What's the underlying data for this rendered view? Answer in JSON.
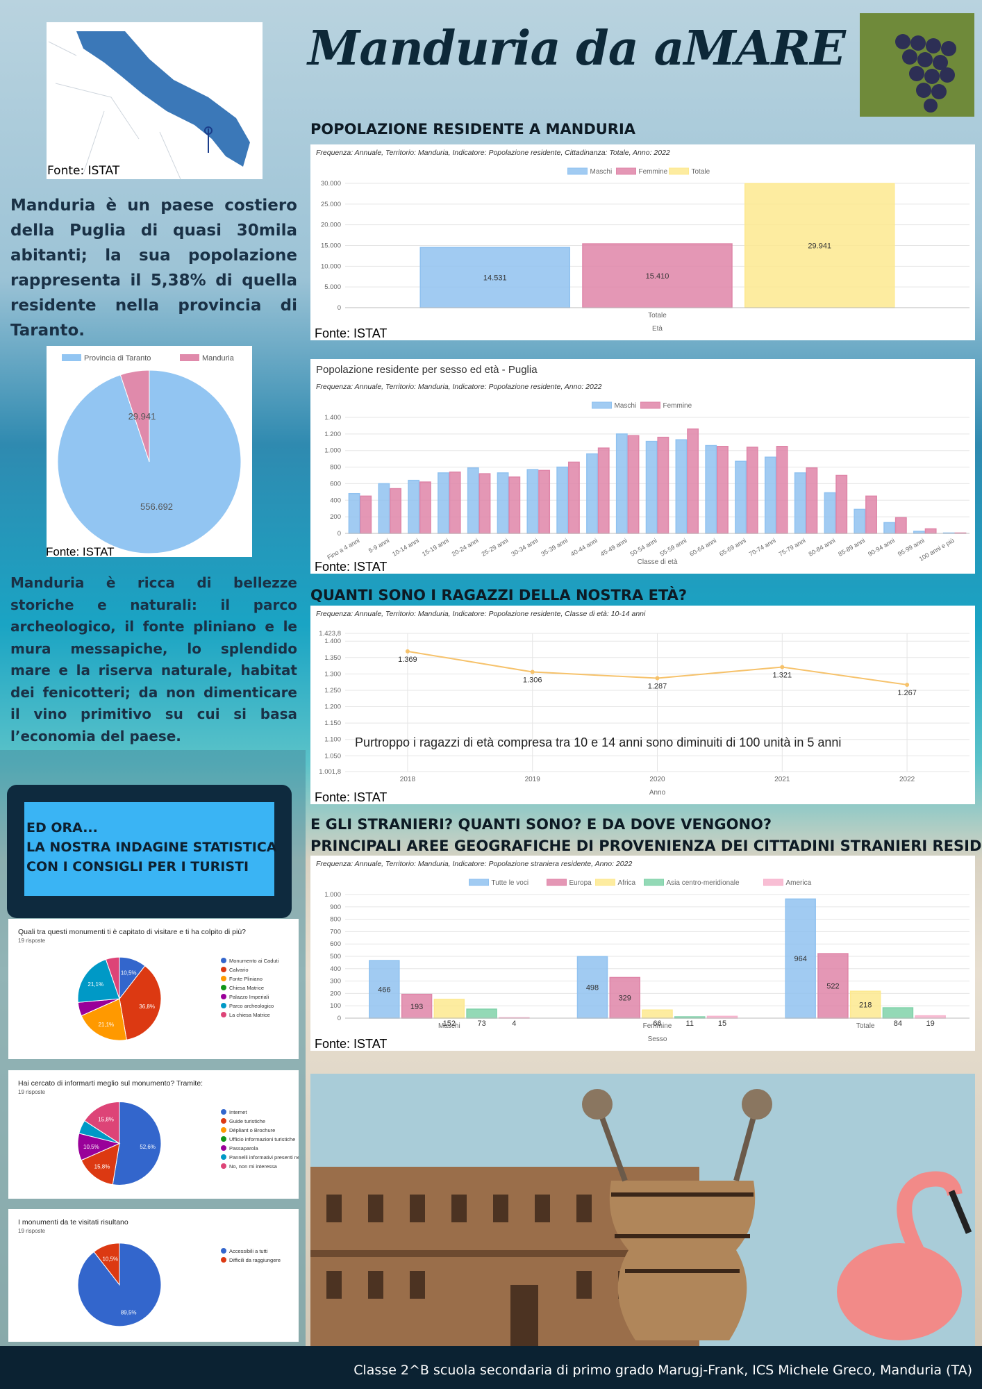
{
  "title": "Manduria da aMARE",
  "map_source": "Fonte: ISTAT",
  "intro": "Manduria è un paese costiero della Puglia di quasi 30mila abitanti; la sua popolazione rappresenta il 5,38% di quella residente nella provincia di Taranto.",
  "description": "Manduria è ricca di bellezze storiche e naturali: il parco archeologico, il fonte pliniano e le mura messapiche, lo splendido mare e la riserva naturale, habitat dei fenicotteri; da non dimenticare il vino primitivo su cui si basa l’economia del paese.",
  "callout": [
    "ED ORA...",
    "LA NOSTRA INDAGINE STATISTICA",
    "CON I CONSIGLI PER I TURISTI"
  ],
  "footer": "Classe 2^B scuola secondaria di primo grado Marugj-Frank, ICS Michele Greco, Manduria (TA)",
  "chart_data": [
    {
      "type": "pie",
      "categories": [
        "Provincia di Taranto",
        "Manduria"
      ],
      "values": [
        556692,
        29941
      ],
      "value_labels": [
        "556.692",
        "29.941"
      ],
      "colors": [
        "#92c5f2",
        "#e08aab"
      ],
      "legend": "top",
      "source": "Fonte: ISTAT"
    },
    {
      "type": "bar",
      "heading": "POPOLAZIONE RESIDENTE A MANDURIA",
      "subtitle": "Frequenza: Annuale, Territorio: Manduria, Indicatore: Popolazione residente, Cittadinanza: Totale, Anno: 2022",
      "categories": [
        "Totale"
      ],
      "series": [
        {
          "name": "Maschi",
          "color": "#90c2f0",
          "values": [
            14531
          ],
          "value_labels": [
            "14.531"
          ]
        },
        {
          "name": "Femmine",
          "color": "#df85a8",
          "values": [
            15410
          ],
          "value_labels": [
            "15.410"
          ]
        },
        {
          "name": "Totale",
          "color": "#fde98f",
          "values": [
            29941
          ],
          "value_labels": [
            "29.941"
          ]
        }
      ],
      "xlabel": "Età",
      "ylim": [
        0,
        30000
      ],
      "yticks": [
        0,
        {
          "value": 5000,
          "label": "5.000"
        },
        {
          "value": 10000,
          "label": "10.000"
        },
        {
          "value": 15000,
          "label": "15.000"
        },
        {
          "value": 20000,
          "label": "20.000"
        },
        {
          "value": 25000,
          "label": "25.000"
        },
        {
          "value": 30000,
          "label": "30.000"
        }
      ],
      "grid": true,
      "legend": "top",
      "source": "Fonte: ISTAT"
    },
    {
      "type": "bar",
      "title": "Popolazione residente per sesso ed età - Puglia",
      "subtitle": "Frequenza: Annuale, Territorio: Manduria, Indicatore: Popolazione residente, Anno: 2022",
      "categories": [
        "Fino a 4 anni",
        "5-9 anni",
        "10-14 anni",
        "15-19 anni",
        "20-24 anni",
        "25-29 anni",
        "30-34 anni",
        "35-39 anni",
        "40-44 anni",
        "45-49 anni",
        "50-54 anni",
        "55-59 anni",
        "60-64 anni",
        "65-69 anni",
        "70-74 anni",
        "75-79 anni",
        "80-84 anni",
        "85-89 anni",
        "90-94 anni",
        "95-99 anni",
        "100 anni e più"
      ],
      "series": [
        {
          "name": "Maschi",
          "color": "#90c2f0",
          "values": [
            480,
            600,
            640,
            730,
            790,
            730,
            770,
            800,
            960,
            1200,
            1110,
            1130,
            1060,
            870,
            920,
            730,
            490,
            290,
            130,
            25,
            5
          ]
        },
        {
          "name": "Femmine",
          "color": "#df85a8",
          "values": [
            450,
            540,
            620,
            740,
            720,
            680,
            760,
            860,
            1030,
            1180,
            1160,
            1260,
            1050,
            1040,
            1050,
            790,
            700,
            450,
            190,
            55,
            5
          ]
        }
      ],
      "xlabel": "Classe di età",
      "ylim": [
        0,
        1400
      ],
      "yticks": [
        0,
        200,
        400,
        600,
        800,
        {
          "value": 1000,
          "label": "1.000"
        },
        {
          "value": 1200,
          "label": "1.200"
        },
        {
          "value": 1400,
          "label": "1.400"
        }
      ],
      "grid": true,
      "legend": "top",
      "source": "Fonte: ISTAT"
    },
    {
      "type": "line",
      "heading": "QUANTI SONO I RAGAZZI DELLA NOSTRA ETÀ?",
      "subtitle": "Frequenza: Annuale, Territorio: Manduria, Indicatore: Popolazione residente, Classe di età: 10-14 anni",
      "x": [
        2018,
        2019,
        2020,
        2021,
        2022
      ],
      "values": [
        1369,
        1306,
        1287,
        1321,
        1267
      ],
      "value_labels": [
        "1.369",
        "1.306",
        "1.287",
        "1.321",
        "1.267"
      ],
      "color": "#f6c26b",
      "xlabel": "Anno",
      "xlim": [
        2017.5,
        2022.5
      ],
      "xticks": [
        2018,
        2019,
        2020,
        2021,
        2022
      ],
      "ylim": [
        1001.8,
        1423.8
      ],
      "yticks": [
        {
          "value": 1001.8,
          "label": "1.001,8"
        },
        {
          "value": 1050,
          "label": "1.050"
        },
        {
          "value": 1100,
          "label": "1.100"
        },
        {
          "value": 1150,
          "label": "1.150"
        },
        {
          "value": 1200,
          "label": "1.200"
        },
        {
          "value": 1250,
          "label": "1.250"
        },
        {
          "value": 1300,
          "label": "1.300"
        },
        {
          "value": 1350,
          "label": "1.350"
        },
        {
          "value": 1400,
          "label": "1.400"
        },
        {
          "value": 1423.8,
          "label": "1.423,8"
        }
      ],
      "grid": true,
      "annotation": "Purtroppo i ragazzi di età compresa tra 10 e 14 anni sono diminuiti di 100 unità in 5 anni",
      "source": "Fonte: ISTAT"
    },
    {
      "type": "bar",
      "heading": "E GLI STRANIERI? QUANTI SONO? E DA DOVE VENGONO?",
      "subheading": "PRINCIPALI AREE GEOGRAFICHE DI PROVENIENZA DEI CITTADINI STRANIERI RESIDENTI",
      "subtitle": "Frequenza: Annuale, Territorio: Manduria, Indicatore: Popolazione straniera residente, Anno: 2022",
      "categories": [
        "Maschi",
        "Femmine",
        "Totale"
      ],
      "series": [
        {
          "name": "Tutte le voci",
          "color": "#90c2f0",
          "values": [
            466,
            498,
            964
          ]
        },
        {
          "name": "Europa",
          "color": "#df85a8",
          "values": [
            193,
            329,
            522
          ]
        },
        {
          "name": "Africa",
          "color": "#fde98f",
          "values": [
            152,
            66,
            218
          ]
        },
        {
          "name": "Asia centro-meridionale",
          "color": "#80d2a9",
          "values": [
            73,
            11,
            84
          ]
        },
        {
          "name": "America",
          "color": "#f7b3cd",
          "values": [
            4,
            15,
            19
          ]
        }
      ],
      "data_labels": true,
      "xlabel": "Sesso",
      "ylim": [
        0,
        1000
      ],
      "yticks": [
        0,
        100,
        200,
        300,
        400,
        500,
        600,
        700,
        800,
        900,
        {
          "value": 1000,
          "label": "1.000"
        }
      ],
      "grid": true,
      "legend": "top",
      "source": "Fonte: ISTAT"
    },
    {
      "type": "pie",
      "title": "Quali tra questi monumenti ti è capitato di visitare e ti ha colpito di più?",
      "subtitle": "19 risposte",
      "categories": [
        "Monumento ai Caduti",
        "Calvario",
        "Fonte Pliniano",
        "Chiesa Matrice",
        "Palazzo Imperiali",
        "Parco archeologico",
        "La chiesa Matrice"
      ],
      "values": [
        10.5,
        36.8,
        21.1,
        0,
        5.3,
        21.1,
        5.3
      ],
      "value_labels": [
        "10,5%",
        "36,8%",
        "21,1%",
        null,
        null,
        "21,1%",
        null
      ],
      "colors": [
        "#3366cc",
        "#dc3912",
        "#ff9900",
        "#109618",
        "#990099",
        "#0099c6",
        "#dd4477"
      ],
      "legend": "right"
    },
    {
      "type": "pie",
      "title": "Hai cercato di informarti meglio sul monumento? Tramite:",
      "subtitle": "19 risposte",
      "categories": [
        "Internet",
        "Guide turistiche",
        "Dépliant o Brochure",
        "Ufficio informazioni turistiche",
        "Passaparola",
        "Pannelli informativi presenti nel sito",
        "No, non mi interessa"
      ],
      "values": [
        52.6,
        15.8,
        0,
        0,
        10.5,
        5.3,
        15.8
      ],
      "value_labels": [
        "52,6%",
        "15,8%",
        null,
        null,
        "10,5%",
        null,
        "15,8%"
      ],
      "colors": [
        "#3366cc",
        "#dc3912",
        "#ff9900",
        "#109618",
        "#990099",
        "#0099c6",
        "#dd4477"
      ],
      "legend": "right"
    },
    {
      "type": "pie",
      "title": "I monumenti da te visitati risultano",
      "subtitle": "19 risposte",
      "categories": [
        "Accessibili a tutti",
        "Difficili da raggiungere"
      ],
      "values": [
        89.5,
        10.5
      ],
      "value_labels": [
        "89,5%",
        "10,5%"
      ],
      "colors": [
        "#3366cc",
        "#dc3912"
      ],
      "legend": "right"
    }
  ]
}
